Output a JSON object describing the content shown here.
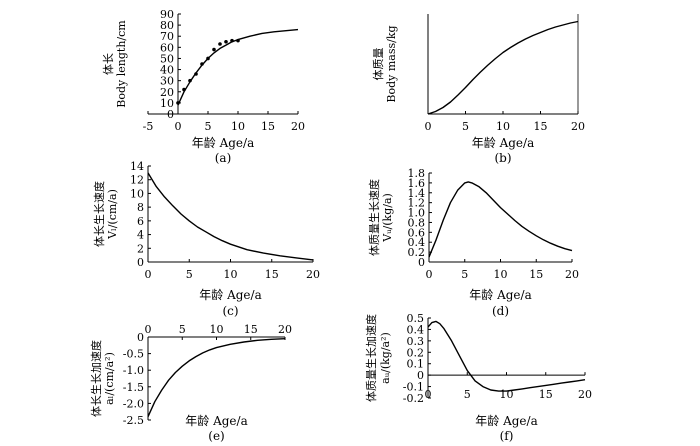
{
  "chart_data": [
    {
      "id": "a",
      "type": "line",
      "caption": "(a)",
      "xlabel": "年龄  Age/a",
      "ylabel_cn": "体长",
      "ylabel_en": "Body  length/cm",
      "xlim": [
        -5,
        20
      ],
      "ylim": [
        0,
        90
      ],
      "xaxis_position": "bottom",
      "grid": false,
      "xticks": [
        "-5",
        "0",
        "5",
        "10",
        "15",
        "20"
      ],
      "yticks": [
        "0",
        "10",
        "20",
        "30",
        "40",
        "50",
        "60",
        "70",
        "80",
        "90"
      ],
      "series": [
        {
          "name": "fitted",
          "style": "line",
          "x": [
            0,
            1,
            2,
            3,
            4,
            5,
            6,
            7,
            8,
            9,
            10,
            12,
            14,
            16,
            18,
            20
          ],
          "y": [
            8,
            20,
            29,
            37,
            44,
            50,
            55,
            59,
            62,
            65,
            67,
            70,
            72.5,
            74,
            75,
            76
          ]
        },
        {
          "name": "observed",
          "style": "points",
          "x": [
            0,
            1,
            2,
            3,
            4,
            5,
            6,
            7,
            8,
            9,
            10
          ],
          "y": [
            10,
            22,
            30,
            36,
            45,
            50,
            58,
            63,
            65,
            66,
            66
          ]
        }
      ]
    },
    {
      "id": "b",
      "type": "line",
      "caption": "(b)",
      "xlabel": "年龄  Age/a",
      "ylabel_cn": "体质量",
      "ylabel_en": "Body  mass/kg",
      "xlim": [
        0,
        20
      ],
      "ylim": [
        0,
        20
      ],
      "xaxis_position": "bottom",
      "grid": false,
      "xticks": [
        "0",
        "5",
        "10",
        "15",
        "20"
      ],
      "yticks": [],
      "series": [
        {
          "name": "fitted",
          "style": "line",
          "x": [
            0,
            1,
            2,
            3,
            4,
            5,
            6,
            7,
            8,
            9,
            10,
            11,
            12,
            13,
            14,
            15,
            16,
            17,
            18,
            19,
            20
          ],
          "y": [
            0,
            0.5,
            1.3,
            2.4,
            3.8,
            5.3,
            6.9,
            8.4,
            9.8,
            11.1,
            12.3,
            13.3,
            14.2,
            15,
            15.7,
            16.3,
            16.9,
            17.4,
            17.8,
            18.2,
            18.5
          ]
        }
      ]
    },
    {
      "id": "c",
      "type": "line",
      "caption": "(c)",
      "xlabel": "年龄  Age/a",
      "ylabel_cn": "体长生长速度",
      "ylabel_en": "Vₗ/(cm/a)",
      "xlim": [
        0,
        20
      ],
      "ylim": [
        0,
        14
      ],
      "xaxis_position": "bottom",
      "grid": false,
      "xticks": [
        "0",
        "5",
        "10",
        "15",
        "20"
      ],
      "yticks": [
        "0",
        "2",
        "4",
        "6",
        "8",
        "10",
        "12",
        "14"
      ],
      "series": [
        {
          "name": "Vl",
          "style": "line",
          "x": [
            0,
            1,
            2,
            3,
            4,
            5,
            6,
            7,
            8,
            9,
            10,
            12,
            14,
            16,
            18,
            20
          ],
          "y": [
            13,
            11,
            9.5,
            8.2,
            7,
            6,
            5.1,
            4.4,
            3.7,
            3.1,
            2.6,
            1.8,
            1.3,
            0.9,
            0.6,
            0.3
          ]
        }
      ]
    },
    {
      "id": "d",
      "type": "line",
      "caption": "(d)",
      "xlabel": "年龄  Age/a",
      "ylabel_cn": "体质量生长速度",
      "ylabel_en": "Vᵤ/(kg/a)",
      "xlim": [
        0,
        20
      ],
      "ylim": [
        0,
        1.8
      ],
      "xaxis_position": "bottom",
      "grid": false,
      "xticks": [
        "0",
        "5",
        "10",
        "15",
        "20"
      ],
      "yticks": [
        "0",
        "0.2",
        "0.4",
        "0.6",
        "0.8",
        "1.0",
        "1.2",
        "1.4",
        "1.6",
        "1.8"
      ],
      "series": [
        {
          "name": "Vw",
          "style": "line",
          "x": [
            0,
            1,
            2,
            3,
            4,
            5,
            5.5,
            6,
            7,
            8,
            9,
            10,
            11,
            12,
            13,
            14,
            15,
            16,
            17,
            18,
            19,
            20
          ],
          "y": [
            0.1,
            0.45,
            0.85,
            1.2,
            1.45,
            1.6,
            1.62,
            1.6,
            1.52,
            1.4,
            1.25,
            1.1,
            0.97,
            0.84,
            0.72,
            0.62,
            0.53,
            0.45,
            0.38,
            0.32,
            0.27,
            0.23
          ]
        }
      ]
    },
    {
      "id": "e",
      "type": "line",
      "caption": "(e)",
      "xlabel": "年龄  Age/a",
      "ylabel_cn": "体长生长加速度",
      "ylabel_en": "aₗ/(cm/a²)",
      "xlim": [
        0,
        20
      ],
      "ylim": [
        -2.5,
        0
      ],
      "xaxis_position": "top",
      "grid": false,
      "xticks": [
        "0",
        "5",
        "10",
        "15",
        "20"
      ],
      "yticks": [
        "0",
        "-0.5",
        "-1.0",
        "-1.5",
        "-2.0",
        "-2.5"
      ],
      "series": [
        {
          "name": "al",
          "style": "line",
          "x": [
            0,
            1,
            2,
            3,
            4,
            5,
            6,
            7,
            8,
            9,
            10,
            12,
            14,
            16,
            18,
            20
          ],
          "y": [
            -2.4,
            -1.95,
            -1.6,
            -1.3,
            -1.07,
            -0.88,
            -0.72,
            -0.59,
            -0.48,
            -0.39,
            -0.32,
            -0.22,
            -0.15,
            -0.1,
            -0.07,
            -0.05
          ]
        }
      ]
    },
    {
      "id": "f",
      "type": "line",
      "caption": "(f)",
      "xlabel": "年龄  Age/a",
      "ylabel_cn": "体质量生长加速度",
      "ylabel_en": "aᵤ/(kg/a²)",
      "xlim": [
        0,
        20
      ],
      "ylim": [
        -0.2,
        0.5
      ],
      "xaxis_position": "zero",
      "grid": false,
      "xticks": [
        "0",
        "5",
        "10",
        "15",
        "20"
      ],
      "yticks": [
        "0.5",
        "0.4",
        "0.3",
        "0.2",
        "0.1",
        "0",
        "-0.1",
        "-0.2"
      ],
      "series": [
        {
          "name": "aw",
          "style": "line",
          "x": [
            0,
            0.5,
            1,
            1.5,
            2,
            3,
            4,
            5,
            6,
            7,
            8,
            9,
            10,
            11,
            12,
            13,
            14,
            15,
            16,
            17,
            18,
            19,
            20
          ],
          "y": [
            0.42,
            0.46,
            0.47,
            0.45,
            0.41,
            0.3,
            0.17,
            0.04,
            -0.05,
            -0.1,
            -0.13,
            -0.14,
            -0.14,
            -0.13,
            -0.12,
            -0.11,
            -0.1,
            -0.09,
            -0.08,
            -0.07,
            -0.06,
            -0.05,
            -0.04
          ]
        }
      ]
    }
  ]
}
